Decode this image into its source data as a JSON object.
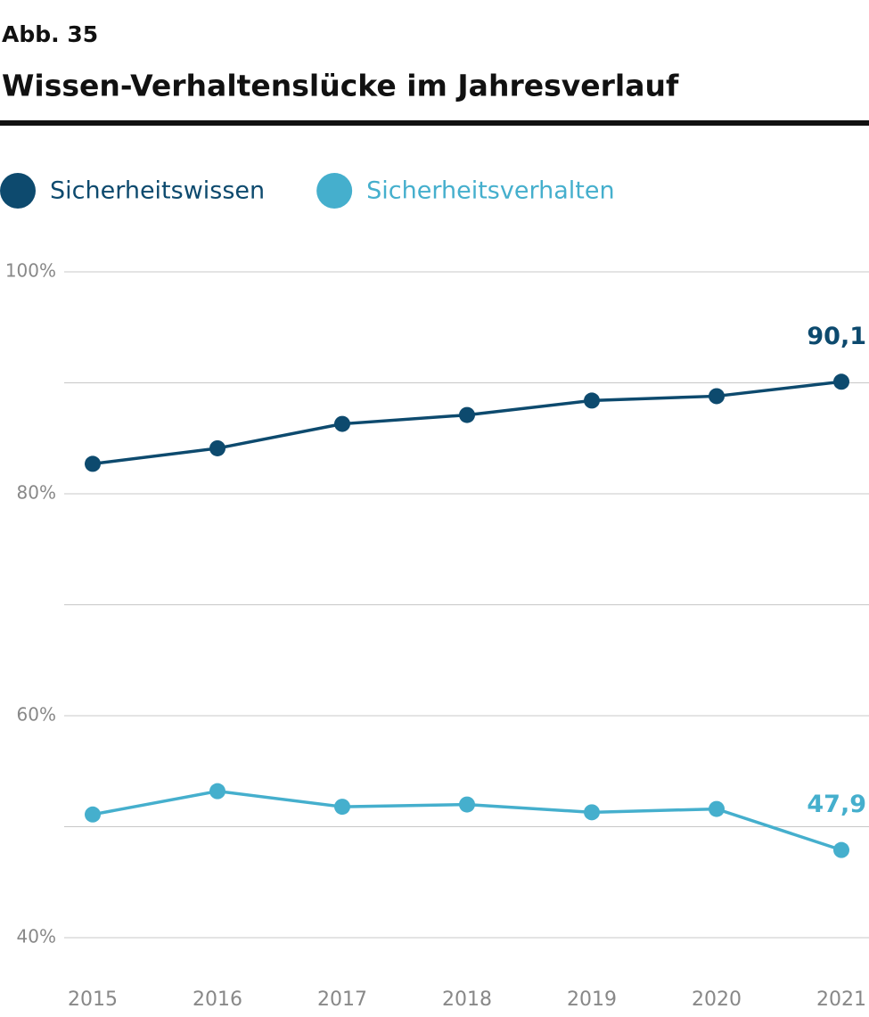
{
  "chart_data": {
    "type": "line",
    "figure_label": "Abb. 35",
    "title": "Wissen-Verhaltenslücke im Jahresverlauf",
    "categories": [
      "2015",
      "2016",
      "2017",
      "2018",
      "2019",
      "2020",
      "2021"
    ],
    "series": [
      {
        "name": "Sicherheitswissen",
        "color": "#0d4a6e",
        "values": [
          82.7,
          84.1,
          86.3,
          87.1,
          88.4,
          88.8,
          90.1
        ],
        "value_labels": [
          null,
          null,
          null,
          null,
          null,
          null,
          "90,1"
        ]
      },
      {
        "name": "Sicherheitsverhalten",
        "color": "#45afcd",
        "values": [
          51.1,
          53.2,
          51.8,
          52.0,
          51.3,
          51.6,
          47.9
        ],
        "value_labels": [
          null,
          null,
          null,
          null,
          null,
          null,
          "47,9"
        ]
      }
    ],
    "ylim": [
      40,
      100
    ],
    "yticks": [
      {
        "value": 40,
        "label": "40%"
      },
      {
        "value": 60,
        "label": "60%"
      },
      {
        "value": 80,
        "label": "80%"
      },
      {
        "value": 100,
        "label": "100%"
      }
    ],
    "minor_yticks": [
      50,
      70,
      90
    ],
    "grid": true
  }
}
